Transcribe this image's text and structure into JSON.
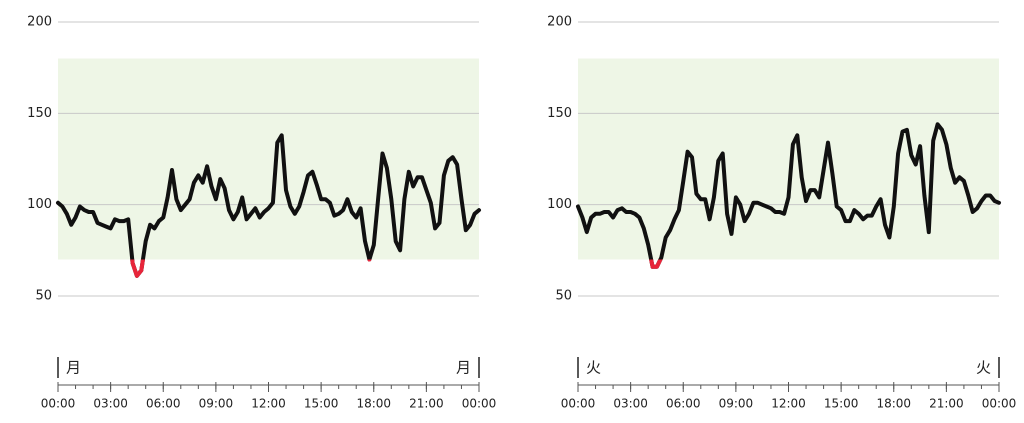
{
  "chart_data": [
    {
      "type": "line",
      "x": [
        0,
        0.25,
        0.5,
        0.75,
        1,
        1.25,
        1.5,
        1.75,
        2,
        2.25,
        2.5,
        2.75,
        3,
        3.25,
        3.5,
        3.75,
        4,
        4.25,
        4.5,
        4.75,
        5,
        5.25,
        5.5,
        5.75,
        6,
        6.25,
        6.5,
        6.75,
        7,
        7.25,
        7.5,
        7.75,
        8,
        8.25,
        8.5,
        8.75,
        9,
        9.25,
        9.5,
        9.75,
        10,
        10.25,
        10.5,
        10.75,
        11,
        11.25,
        11.5,
        11.75,
        12,
        12.25,
        12.5,
        12.75,
        13,
        13.25,
        13.5,
        13.75,
        14,
        14.25,
        14.5,
        14.75,
        15,
        15.25,
        15.5,
        15.75,
        16,
        16.25,
        16.5,
        16.75,
        17,
        17.25,
        17.5,
        17.75,
        18,
        18.25,
        18.5,
        18.75,
        19,
        19.25,
        19.5,
        19.75,
        20,
        20.25,
        20.5,
        20.75,
        21,
        21.25,
        21.5,
        21.75,
        22,
        22.25,
        22.5,
        22.75,
        23,
        23.25,
        23.5,
        23.75,
        24
      ],
      "series": [
        {
          "color": "#111111",
          "low_color": "#e8253a",
          "values": [
            101,
            99,
            95,
            89,
            93,
            99,
            97,
            96,
            96,
            90,
            89,
            88,
            87,
            92,
            91,
            91,
            92,
            68,
            61,
            64,
            80,
            89,
            87,
            91,
            93,
            104,
            119,
            103,
            97,
            100,
            103,
            112,
            116,
            112,
            121,
            110,
            103,
            114,
            109,
            97,
            92,
            96,
            104,
            92,
            95,
            98,
            93,
            96,
            98,
            101,
            134,
            138,
            108,
            99,
            95,
            99,
            107,
            116,
            118,
            111,
            103,
            103,
            101,
            94,
            95,
            97,
            103,
            96,
            93,
            98,
            80,
            70,
            78,
            103,
            128,
            120,
            103,
            80,
            75,
            103,
            118,
            110,
            115,
            115,
            108,
            101,
            87,
            90,
            116,
            124,
            126,
            122,
            103,
            86,
            89,
            95,
            97
          ]
        }
      ],
      "target_range": [
        70,
        180
      ],
      "target_color": "#eef6e6",
      "ylim": [
        50,
        200
      ],
      "yticks": [
        50,
        100,
        150,
        200
      ],
      "grid": true,
      "xlim": [
        0,
        24
      ],
      "xticks": [
        {
          "value": 0,
          "label": "00:00"
        },
        {
          "value": 3,
          "label": "03:00"
        },
        {
          "value": 6,
          "label": "06:00"
        },
        {
          "value": 9,
          "label": "09:00"
        },
        {
          "value": 12,
          "label": "12:00"
        },
        {
          "value": 15,
          "label": "15:00"
        },
        {
          "value": 18,
          "label": "18:00"
        },
        {
          "value": 21,
          "label": "21:00"
        },
        {
          "value": 24,
          "label": "00:00"
        }
      ],
      "xminor_ticks": [
        0,
        1,
        2,
        3,
        4,
        5,
        6,
        7,
        8,
        9,
        10,
        11,
        12,
        13,
        14,
        15,
        16,
        17,
        18,
        19,
        20,
        21,
        22,
        23,
        24
      ],
      "day_label_start": "月",
      "day_label_end": "月"
    },
    {
      "type": "line",
      "x": [
        0,
        0.25,
        0.5,
        0.75,
        1,
        1.25,
        1.5,
        1.75,
        2,
        2.25,
        2.5,
        2.75,
        3,
        3.25,
        3.5,
        3.75,
        4,
        4.25,
        4.5,
        4.75,
        5,
        5.25,
        5.5,
        5.75,
        6,
        6.25,
        6.5,
        6.75,
        7,
        7.25,
        7.5,
        7.75,
        8,
        8.25,
        8.5,
        8.75,
        9,
        9.25,
        9.5,
        9.75,
        10,
        10.25,
        10.5,
        10.75,
        11,
        11.25,
        11.5,
        11.75,
        12,
        12.25,
        12.5,
        12.75,
        13,
        13.25,
        13.5,
        13.75,
        14,
        14.25,
        14.5,
        14.75,
        15,
        15.25,
        15.5,
        15.75,
        16,
        16.25,
        16.5,
        16.75,
        17,
        17.25,
        17.5,
        17.75,
        18,
        18.25,
        18.5,
        18.75,
        19,
        19.25,
        19.5,
        19.75,
        20,
        20.25,
        20.5,
        20.75,
        21,
        21.25,
        21.5,
        21.75,
        22,
        22.25,
        22.5,
        22.75,
        23,
        23.25,
        23.5,
        23.75,
        24
      ],
      "series": [
        {
          "color": "#111111",
          "low_color": "#e8253a",
          "values": [
            99,
            93,
            85,
            93,
            95,
            95,
            96,
            96,
            93,
            97,
            98,
            96,
            96,
            95,
            93,
            87,
            78,
            66,
            66,
            71,
            82,
            86,
            92,
            97,
            113,
            129,
            126,
            106,
            103,
            103,
            92,
            104,
            124,
            128,
            95,
            84,
            104,
            100,
            91,
            95,
            101,
            101,
            100,
            99,
            98,
            96,
            96,
            95,
            104,
            133,
            138,
            115,
            102,
            108,
            108,
            104,
            119,
            134,
            117,
            99,
            97,
            91,
            91,
            97,
            95,
            92,
            94,
            94,
            99,
            103,
            89,
            82,
            99,
            128,
            140,
            141,
            127,
            122,
            132,
            105,
            85,
            135,
            144,
            141,
            133,
            120,
            112,
            115,
            113,
            105,
            96,
            98,
            102,
            105,
            105,
            102,
            101
          ]
        }
      ],
      "target_range": [
        70,
        180
      ],
      "target_color": "#eef6e6",
      "ylim": [
        50,
        200
      ],
      "yticks": [
        50,
        100,
        150,
        200
      ],
      "grid": true,
      "xlim": [
        0,
        24
      ],
      "xticks": [
        {
          "value": 0,
          "label": "00:00"
        },
        {
          "value": 3,
          "label": "03:00"
        },
        {
          "value": 6,
          "label": "06:00"
        },
        {
          "value": 9,
          "label": "09:00"
        },
        {
          "value": 12,
          "label": "12:00"
        },
        {
          "value": 15,
          "label": "15:00"
        },
        {
          "value": 18,
          "label": "18:00"
        },
        {
          "value": 21,
          "label": "21:00"
        },
        {
          "value": 24,
          "label": "00:00"
        }
      ],
      "xminor_ticks": [
        0,
        1,
        2,
        3,
        4,
        5,
        6,
        7,
        8,
        9,
        10,
        11,
        12,
        13,
        14,
        15,
        16,
        17,
        18,
        19,
        20,
        21,
        22,
        23,
        24
      ],
      "day_label_start": "火",
      "day_label_end": "火"
    }
  ]
}
